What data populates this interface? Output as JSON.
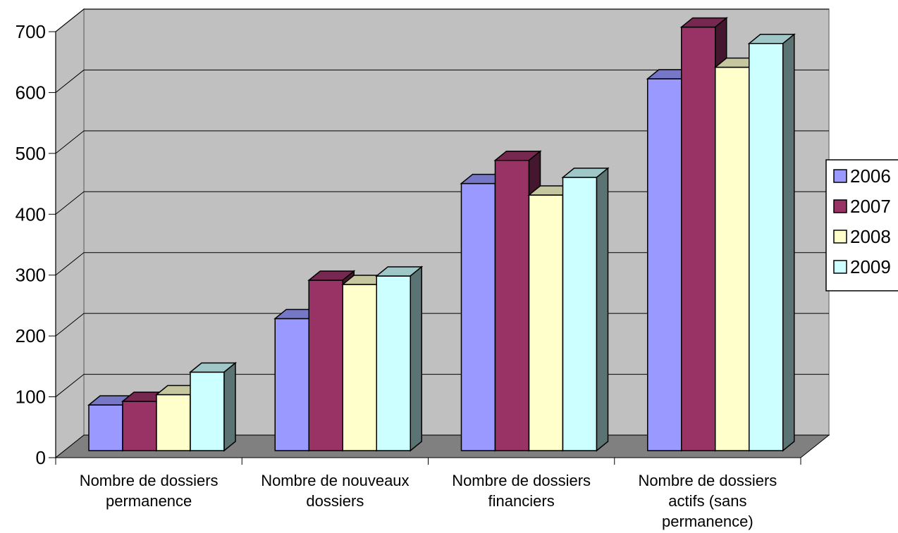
{
  "chart_data": {
    "type": "bar",
    "style": "3d-clustered-column",
    "categories": [
      [
        "Nombre de dossiers",
        "permanence"
      ],
      [
        "Nombre de nouveaux",
        "dossiers"
      ],
      [
        "Nombre de dossiers",
        "financiers"
      ],
      [
        "Nombre de dossiers",
        "actifs (sans",
        "permanence)"
      ]
    ],
    "series": [
      {
        "name": "2006",
        "color": "#9999ff",
        "values": [
          75,
          217,
          439,
          611
        ]
      },
      {
        "name": "2007",
        "color": "#993366",
        "values": [
          81,
          280,
          477,
          696
        ]
      },
      {
        "name": "2008",
        "color": "#ffffcc",
        "values": [
          92,
          273,
          420,
          630
        ]
      },
      {
        "name": "2009",
        "color": "#ccffff",
        "values": [
          129,
          287,
          449,
          669
        ]
      }
    ],
    "yticks": [
      0,
      100,
      200,
      300,
      400,
      500,
      600,
      700
    ],
    "ylim": [
      0,
      700
    ],
    "grid": true,
    "legend_position": "right",
    "wall_color": "#c0c0c0",
    "floor_color": "#808080"
  }
}
